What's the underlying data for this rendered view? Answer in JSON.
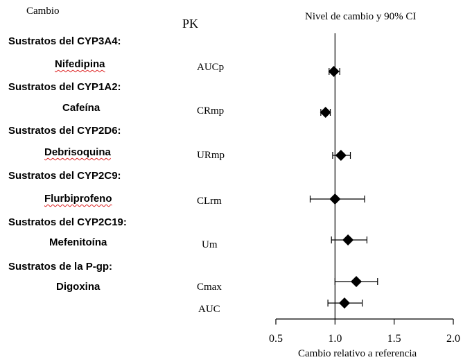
{
  "headers": {
    "cambio": "Cambio",
    "pk": "PK",
    "nivel": "Nivel de cambio y 90% CI"
  },
  "rows": [
    {
      "group": "Sustratos del CYP3A4:",
      "drug": "Nifedipina",
      "pk": "AUCp"
    },
    {
      "group": "Sustratos del CYP1A2:",
      "drug": "Cafeína",
      "pk": "CRmp"
    },
    {
      "group": "Sustratos del CYP2D6:",
      "drug": "Debrisoquina",
      "pk": "URmp"
    },
    {
      "group": "Sustratos del CYP2C9:",
      "drug": "Flurbiprofeno",
      "pk": "CLrm"
    },
    {
      "group": "Sustratos del CYP2C19:",
      "drug": "Mefenitoína",
      "pk": "Um"
    },
    {
      "group": "Sustratos de la P-gp:",
      "drug": "Digoxina",
      "pk": "Cmax"
    },
    {
      "group": "",
      "drug": "",
      "pk": "AUC"
    }
  ],
  "chart_data": {
    "type": "forest",
    "xlabel": "Cambio relativo a referencia",
    "xlim": [
      0.5,
      2.0
    ],
    "xticks": [
      "0.5",
      "1.0",
      "1.5",
      "2.0"
    ],
    "reference_line": 1.0,
    "points": [
      {
        "drug": "Nifedipina",
        "pk": "AUCp",
        "estimate": 0.99,
        "ci_low": 0.95,
        "ci_high": 1.04
      },
      {
        "drug": "Cafeína",
        "pk": "CRmp",
        "estimate": 0.92,
        "ci_low": 0.88,
        "ci_high": 0.96
      },
      {
        "drug": "Debrisoquina",
        "pk": "URmp",
        "estimate": 1.05,
        "ci_low": 0.98,
        "ci_high": 1.13
      },
      {
        "drug": "Flurbiprofeno",
        "pk": "CLrm",
        "estimate": 1.0,
        "ci_low": 0.79,
        "ci_high": 1.25
      },
      {
        "drug": "Mefenitoína",
        "pk": "Um",
        "estimate": 1.11,
        "ci_low": 0.97,
        "ci_high": 1.27
      },
      {
        "drug": "Digoxina",
        "pk": "Cmax",
        "estimate": 1.18,
        "ci_low": 1.0,
        "ci_high": 1.36
      },
      {
        "drug": "Digoxina",
        "pk": "AUC",
        "estimate": 1.08,
        "ci_low": 0.94,
        "ci_high": 1.23
      }
    ],
    "marker": "diamond",
    "color": "#000000"
  }
}
